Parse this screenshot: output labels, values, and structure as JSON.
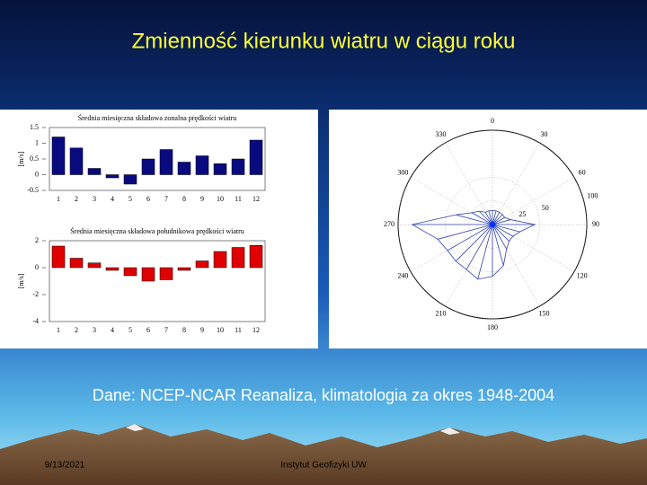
{
  "slide": {
    "title": "Zmienność kierunku wiatru w ciągu roku",
    "caption": "Dane: NCEP-NCAR Reanaliza, klimatologia za okres 1948-2004",
    "date": "9/13/2021",
    "footer": "Instytut Geofizyki UW"
  },
  "chart_data": [
    {
      "type": "bar",
      "title": "Średnia miesięczna składowa zonalna prędkości wiatru",
      "y_label": "[m/s]",
      "categories": [
        "1",
        "2",
        "3",
        "4",
        "5",
        "6",
        "7",
        "8",
        "9",
        "10",
        "11",
        "12"
      ],
      "values": [
        1.2,
        0.85,
        0.2,
        -0.1,
        -0.3,
        0.5,
        0.8,
        0.4,
        0.6,
        0.35,
        0.5,
        1.1
      ],
      "color": "#0a0a80",
      "ylim": [
        -0.5,
        1.5
      ],
      "yticks": [
        -0.5,
        0,
        0.5,
        1,
        1.5
      ]
    },
    {
      "type": "bar",
      "title": "Średnia miesięczna składowa południkowa prędkości wiatru",
      "y_label": "[m/s]",
      "categories": [
        "1",
        "2",
        "3",
        "4",
        "5",
        "6",
        "7",
        "8",
        "9",
        "10",
        "11",
        "12"
      ],
      "values": [
        1.6,
        0.7,
        0.35,
        -0.2,
        -0.6,
        -1.0,
        -0.9,
        -0.2,
        0.5,
        1.2,
        1.5,
        1.65
      ],
      "color": "#e00000",
      "ylim": [
        -4,
        2
      ],
      "yticks": [
        -4,
        -2,
        0,
        2
      ]
    },
    {
      "type": "polar",
      "color": "#3344aa",
      "angles": [
        0,
        15,
        30,
        45,
        60,
        75,
        90,
        105,
        120,
        135,
        150,
        165,
        180,
        195,
        210,
        225,
        240,
        255,
        270,
        285,
        300,
        315,
        330,
        345
      ],
      "values": [
        15,
        15,
        15,
        15,
        15,
        20,
        45,
        30,
        25,
        25,
        30,
        45,
        55,
        60,
        55,
        55,
        55,
        60,
        85,
        40,
        25,
        20,
        15,
        15
      ],
      "angle_ticks": [
        0,
        30,
        60,
        90,
        120,
        150,
        180,
        210,
        240,
        270,
        300,
        330
      ],
      "rlim": [
        0,
        100
      ],
      "rticks": [
        25,
        50,
        100
      ]
    }
  ]
}
